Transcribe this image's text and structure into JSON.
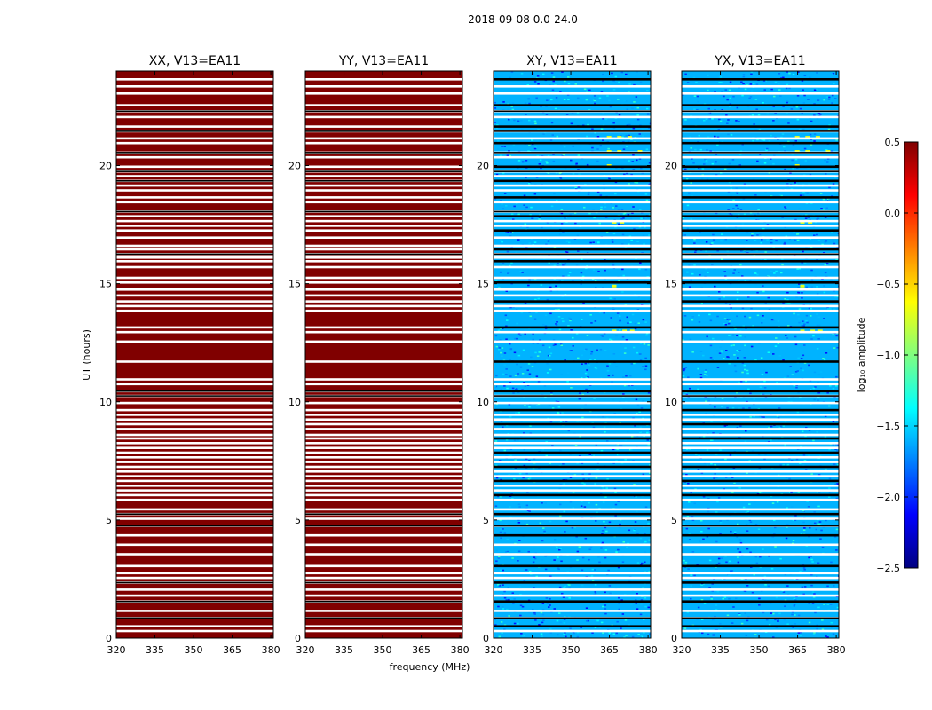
{
  "chart_data": {
    "type": "heatmap",
    "title": "2018-09-08 0.0-24.0",
    "xlabel": "frequency (MHz)",
    "ylabel": "UT (hours)",
    "xlim": [
      320,
      381
    ],
    "ylim": [
      0,
      24
    ],
    "xticks": [
      320,
      335,
      350,
      365,
      380
    ],
    "yticks": [
      0,
      5,
      10,
      15,
      20
    ],
    "panels": [
      {
        "title": "XX, V13=EA11",
        "level": 0.5
      },
      {
        "title": "YY, V13=EA11",
        "level": 0.5
      },
      {
        "title": "XY, V13=EA11",
        "level": -1.6
      },
      {
        "title": "YX, V13=EA11",
        "level": -1.6
      }
    ],
    "colorbar": {
      "label": "log₁₀ amplitude",
      "range": [
        -2.5,
        0.5
      ],
      "ticks": [
        "0.5",
        "0.0",
        "−0.5",
        "−1.0",
        "−1.5",
        "−2.0",
        "−2.5"
      ],
      "tick_values": [
        0.5,
        0.0,
        -0.5,
        -1.0,
        -1.5,
        -2.0,
        -2.5
      ],
      "colormap": "jet"
    },
    "flagged_hours": [
      0.3,
      0.5,
      0.85,
      1.15,
      1.55,
      1.8,
      2.05,
      2.35,
      2.55,
      2.75,
      3.05,
      3.55,
      3.95,
      4.35,
      4.75,
      5.05,
      5.25,
      5.45,
      5.85,
      6.05,
      6.25,
      6.45,
      6.65,
      6.85,
      7.05,
      7.25,
      7.45,
      7.65,
      7.85,
      8.05,
      8.25,
      8.45,
      8.6,
      8.85,
      9.05,
      9.25,
      9.45,
      9.65,
      9.95,
      10.25,
      10.45,
      10.75,
      10.95,
      11.7,
      12.55,
      12.95,
      13.15,
      13.85,
      14.05,
      14.25,
      14.5,
      14.75,
      15.05,
      15.25,
      15.7,
      15.95,
      16.1,
      16.25,
      16.45,
      16.6,
      16.95,
      17.25,
      17.45,
      17.65,
      17.85,
      18.05,
      18.45,
      18.65,
      18.95,
      19.15,
      19.35,
      19.55,
      19.75,
      19.95,
      20.35,
      20.55,
      20.95,
      21.15,
      21.45,
      21.65,
      22.05,
      22.3,
      22.55,
      23.05,
      23.35,
      23.65
    ]
  }
}
